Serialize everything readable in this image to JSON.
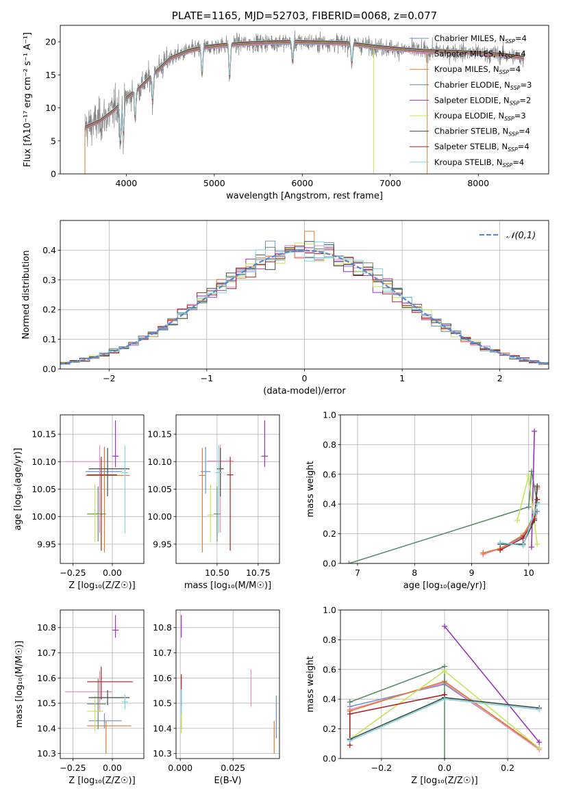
{
  "chart_data": [
    {
      "id": "spectrum",
      "type": "line",
      "title": "PLATE=1165, MJD=52703, FIBERID=0068, z=0.077",
      "xlabel": "wavelength [Angstrom, rest frame]",
      "ylabel": "Flux [f$_\\lambda$10$^{-17}$ erg cm$^{-2}$ s$^{-1}$ A$^{-1}$]",
      "ylabel_text": "Flux [fλ10⁻¹⁷ erg cm⁻² s⁻¹ A⁻¹]",
      "xlim": [
        3250,
        8800
      ],
      "ylim": [
        0,
        22.5
      ],
      "xticks": [
        4000,
        5000,
        6000,
        7000,
        8000
      ],
      "yticks": [
        0,
        5,
        10,
        15,
        20
      ],
      "grid": false,
      "legend_position": "right",
      "data_color": "#808080",
      "continuum_x": [
        3530,
        3700,
        3850,
        4000,
        4150,
        4300,
        4500,
        4700,
        4900,
        5100,
        5300,
        5600,
        5900,
        6200,
        6500,
        6800,
        7100,
        7400,
        7700,
        8000,
        8300,
        8500
      ],
      "continuum_y": [
        7.0,
        8.0,
        9.5,
        11.5,
        13.0,
        15.0,
        17.5,
        18.6,
        19.2,
        19.5,
        19.7,
        19.9,
        20.0,
        19.9,
        19.8,
        19.3,
        18.9,
        18.6,
        18.5,
        18.3,
        18.0,
        17.6
      ],
      "series": [
        {
          "name": "Chabrier MILES",
          "nssp": "4",
          "color": "#6b8fc9"
        },
        {
          "name": "Salpeter MILES",
          "nssp": "4",
          "color": "#e88dbf"
        },
        {
          "name": "Kroupa MILES",
          "nssp": "4",
          "color": "#e07b2d"
        },
        {
          "name": "Chabrier ELODIE",
          "nssp": "3",
          "color": "#5c8a6a"
        },
        {
          "name": "Salpeter ELODIE",
          "nssp": "2",
          "color": "#9932b5"
        },
        {
          "name": "Kroupa ELODIE",
          "nssp": "3",
          "color": "#c8e35a"
        },
        {
          "name": "Chabrier STELIB",
          "nssp": "4",
          "color": "#3f4a3f"
        },
        {
          "name": "Salpeter STELIB",
          "nssp": "4",
          "color": "#b01f1f"
        },
        {
          "name": "Kroupa STELIB",
          "nssp": "4",
          "color": "#7fd3e0"
        }
      ]
    },
    {
      "id": "residuals",
      "type": "histogram",
      "xlabel": "(data-model)/error",
      "ylabel": "Normed distribution",
      "xlim": [
        -2.5,
        2.5
      ],
      "ylim": [
        0,
        0.5
      ],
      "xticks": [
        -2,
        -1,
        0,
        1,
        2
      ],
      "yticks": [
        0.0,
        0.1,
        0.2,
        0.3,
        0.4
      ],
      "grid": true,
      "legend_position": "top-right",
      "reference_label": "𝒩(0,1)",
      "reference_color": "#5b86cf",
      "bin_width": 0.1,
      "bin_start": -2.5
    },
    {
      "id": "age-vs-Z",
      "type": "scatter",
      "xlabel": "Z [log₁₀(Z/Z☉)]",
      "ylabel": "age  [log₁₀(age/yr)]",
      "xlim": [
        -0.33,
        0.2
      ],
      "ylim": [
        9.915,
        10.185
      ],
      "xticks": [
        -0.25,
        0.0
      ],
      "yticks": [
        9.95,
        10.0,
        10.05,
        10.1,
        10.15
      ],
      "grid": true,
      "points": [
        {
          "series": "Chabrier MILES",
          "x": -0.05,
          "y": 10.082,
          "xerr": [
            0.12,
            0.11
          ],
          "yerr": [
            0.04,
            0.045
          ]
        },
        {
          "series": "Salpeter MILES",
          "x": -0.08,
          "y": 10.1,
          "xerr": [
            0.22,
            0.08
          ],
          "yerr": [
            0.13,
            0.03
          ]
        },
        {
          "series": "Kroupa MILES",
          "x": -0.05,
          "y": 10.075,
          "xerr": [
            0.12,
            0.16
          ],
          "yerr": [
            0.14,
            0.05
          ]
        },
        {
          "series": "Chabrier ELODIE",
          "x": -0.09,
          "y": 10.005,
          "xerr": [
            0.07,
            0.05
          ],
          "yerr": [
            0.05,
            0.05
          ]
        },
        {
          "series": "Salpeter ELODIE",
          "x": 0.02,
          "y": 10.11,
          "xerr": [
            0.02,
            0.02
          ],
          "yerr": [
            0.02,
            0.065
          ]
        },
        {
          "series": "Kroupa ELODIE",
          "x": -0.11,
          "y": 10.004,
          "xerr": [
            0.05,
            0.05
          ],
          "yerr": [
            0.05,
            0.055
          ]
        },
        {
          "series": "Chabrier STELIB",
          "x": -0.03,
          "y": 10.087,
          "xerr": [
            0.12,
            0.14
          ],
          "yerr": [
            0.05,
            0.038
          ]
        },
        {
          "series": "Salpeter STELIB",
          "x": -0.07,
          "y": 10.076,
          "xerr": [
            0.09,
            0.1
          ],
          "yerr": [
            0.138,
            0.033
          ]
        },
        {
          "series": "Kroupa STELIB",
          "x": 0.08,
          "y": 10.08,
          "xerr": [
            0.02,
            0.02
          ],
          "yerr": [
            0.11,
            0.05
          ]
        }
      ]
    },
    {
      "id": "age-vs-mass",
      "type": "scatter",
      "xlabel": "mass [log₁₀(M/M☉)]",
      "ylabel": "",
      "xlim": [
        10.25,
        10.88
      ],
      "ylim": [
        9.915,
        10.185
      ],
      "xticks": [
        10.5,
        10.75
      ],
      "xtick_labels": [
        "10.50",
        "10.75"
      ],
      "yticks": [
        9.95,
        10.0,
        10.05,
        10.1,
        10.15
      ],
      "grid": true,
      "points": [
        {
          "series": "Chabrier MILES",
          "x": 10.43,
          "y": 10.082,
          "xerr": [
            0.03,
            0.03
          ],
          "yerr": [
            0.04,
            0.045
          ]
        },
        {
          "series": "Salpeter MILES",
          "x": 10.52,
          "y": 10.101,
          "xerr": [
            0.08,
            0.08
          ],
          "yerr": [
            0.13,
            0.03
          ]
        },
        {
          "series": "Kroupa MILES",
          "x": 10.41,
          "y": 10.075,
          "xerr": [
            0.02,
            0.02
          ],
          "yerr": [
            0.14,
            0.05
          ]
        },
        {
          "series": "Chabrier ELODIE",
          "x": 10.5,
          "y": 10.005,
          "xerr": [
            0.02,
            0.02
          ],
          "yerr": [
            0.05,
            0.05
          ]
        },
        {
          "series": "Salpeter ELODIE",
          "x": 10.79,
          "y": 10.11,
          "xerr": [
            0.02,
            0.02
          ],
          "yerr": [
            0.02,
            0.065
          ]
        },
        {
          "series": "Kroupa ELODIE",
          "x": 10.46,
          "y": 10.003,
          "xerr": [
            0.02,
            0.02
          ],
          "yerr": [
            0.05,
            0.055
          ]
        },
        {
          "series": "Chabrier STELIB",
          "x": 10.52,
          "y": 10.087,
          "xerr": [
            0.02,
            0.02
          ],
          "yerr": [
            0.05,
            0.038
          ]
        },
        {
          "series": "Salpeter STELIB",
          "x": 10.58,
          "y": 10.076,
          "xerr": [
            0.02,
            0.02
          ],
          "yerr": [
            0.138,
            0.033
          ]
        },
        {
          "series": "Kroupa STELIB",
          "x": 10.51,
          "y": 10.08,
          "xerr": [
            0.02,
            0.02
          ],
          "yerr": [
            0.11,
            0.05
          ]
        }
      ]
    },
    {
      "id": "weight-vs-age",
      "type": "line",
      "xlabel": "age  [log₁₀(age/yr)]",
      "ylabel": "mass weight",
      "xlim": [
        6.7,
        10.35
      ],
      "ylim": [
        0,
        1.0
      ],
      "xticks": [
        7,
        8,
        9,
        10
      ],
      "yticks": [
        0.0,
        0.2,
        0.4,
        0.6,
        0.8,
        1.0
      ],
      "grid": true,
      "series": [
        {
          "name": "Chabrier MILES",
          "x": [
            9.2,
            9.5,
            9.9,
            10.1,
            10.15
          ],
          "y": [
            0.07,
            0.1,
            0.18,
            0.33,
            0.35
          ]
        },
        {
          "name": "Salpeter MILES",
          "x": [
            9.2,
            9.5,
            9.9,
            10.1,
            10.15
          ],
          "y": [
            0.06,
            0.1,
            0.19,
            0.31,
            0.5
          ]
        },
        {
          "name": "Kroupa MILES",
          "x": [
            9.2,
            9.5,
            9.9,
            10.1,
            10.15
          ],
          "y": [
            0.07,
            0.1,
            0.19,
            0.32,
            0.51
          ]
        },
        {
          "name": "Chabrier ELODIE",
          "x": [
            6.85,
            10.0,
            10.05,
            10.15
          ],
          "y": [
            0.0,
            0.38,
            0.62,
            0.41
          ]
        },
        {
          "name": "Salpeter ELODIE",
          "x": [
            10.05,
            10.1
          ],
          "y": [
            0.11,
            0.89
          ]
        },
        {
          "name": "Kroupa ELODIE",
          "x": [
            9.8,
            10.0,
            10.15
          ],
          "y": [
            0.29,
            0.59,
            0.13
          ]
        },
        {
          "name": "Chabrier STELIB",
          "x": [
            9.5,
            9.9,
            10.1,
            10.15
          ],
          "y": [
            0.13,
            0.13,
            0.29,
            0.52
          ]
        },
        {
          "name": "Salpeter STELIB",
          "x": [
            9.5,
            9.9,
            10.1,
            10.15
          ],
          "y": [
            0.09,
            0.17,
            0.3,
            0.43
          ]
        },
        {
          "name": "Kroupa STELIB",
          "x": [
            9.5,
            9.9,
            10.1,
            10.15
          ],
          "y": [
            0.14,
            0.12,
            0.34,
            0.4
          ]
        }
      ]
    },
    {
      "id": "mass-vs-Z",
      "type": "scatter",
      "xlabel": "Z [log₁₀(Z/Z☉)]",
      "ylabel": "mass [log₁₀(M/M☉)]",
      "xlim": [
        -0.33,
        0.2
      ],
      "ylim": [
        10.28,
        10.87
      ],
      "xticks": [
        -0.25,
        0.0
      ],
      "yticks": [
        10.3,
        10.4,
        10.5,
        10.6,
        10.7,
        10.8
      ],
      "grid": true,
      "points": [
        {
          "series": "Chabrier MILES",
          "x": -0.05,
          "y": 10.43,
          "xerr": [
            0.1,
            0.11
          ],
          "yerr": [
            0.03,
            0.03
          ]
        },
        {
          "series": "Salpeter MILES",
          "x": -0.08,
          "y": 10.545,
          "xerr": [
            0.22,
            0.08
          ],
          "yerr": [
            0.08,
            0.085
          ]
        },
        {
          "series": "Kroupa MILES",
          "x": -0.04,
          "y": 10.41,
          "xerr": [
            0.12,
            0.16
          ],
          "yerr": [
            0.11,
            0.02
          ]
        },
        {
          "series": "Chabrier ELODIE",
          "x": -0.09,
          "y": 10.497,
          "xerr": [
            0.07,
            0.05
          ],
          "yerr": [
            0.1,
            0.1
          ]
        },
        {
          "series": "Salpeter ELODIE",
          "x": 0.02,
          "y": 10.79,
          "xerr": [
            0.02,
            0.02
          ],
          "yerr": [
            0.03,
            0.06
          ]
        },
        {
          "series": "Kroupa ELODIE",
          "x": -0.11,
          "y": 10.468,
          "xerr": [
            0.05,
            0.05
          ],
          "yerr": [
            0.08,
            0.06
          ]
        },
        {
          "series": "Chabrier STELIB",
          "x": -0.03,
          "y": 10.522,
          "xerr": [
            0.12,
            0.14
          ],
          "yerr": [
            0.03,
            0.03
          ]
        },
        {
          "series": "Salpeter STELIB",
          "x": -0.07,
          "y": 10.585,
          "xerr": [
            0.09,
            0.2
          ],
          "yerr": [
            0.07,
            0.06
          ]
        },
        {
          "series": "Kroupa STELIB",
          "x": 0.08,
          "y": 10.505,
          "xerr": [
            0.02,
            0.02
          ],
          "yerr": [
            0.03,
            0.03
          ]
        }
      ]
    },
    {
      "id": "mass-vs-EBV",
      "type": "scatter",
      "xlabel": "E(B-V)",
      "ylabel": "",
      "xlim": [
        -0.002,
        0.047
      ],
      "ylim": [
        10.28,
        10.87
      ],
      "xticks": [
        0.0,
        0.025
      ],
      "xtick_labels": [
        "0.000",
        "0.025"
      ],
      "yticks": [
        10.3,
        10.4,
        10.5,
        10.6,
        10.7,
        10.8
      ],
      "grid": true,
      "points": [
        {
          "series": "Chabrier MILES",
          "x": 0.0455,
          "y": 10.43,
          "yerr": [
            0.07,
            0.1
          ]
        },
        {
          "series": "Salpeter MILES",
          "x": 0.0335,
          "y": 10.545,
          "yerr": [
            0.06,
            0.09
          ]
        },
        {
          "series": "Kroupa MILES",
          "x": 0.0445,
          "y": 10.41,
          "yerr": [
            0.11,
            0.02
          ]
        },
        {
          "series": "Chabrier ELODIE",
          "x": 0.0005,
          "y": 10.497,
          "yerr": [
            0.1,
            0.05
          ]
        },
        {
          "series": "Salpeter ELODIE",
          "x": 0.0005,
          "y": 10.79,
          "yerr": [
            0.03,
            0.06
          ]
        },
        {
          "series": "Kroupa ELODIE",
          "x": 0.0005,
          "y": 10.43,
          "yerr": [
            0.05,
            0.05
          ]
        },
        {
          "series": "Chabrier STELIB",
          "x": 0.0005,
          "y": 10.522,
          "yerr": [
            0.03,
            0.03
          ]
        },
        {
          "series": "Salpeter STELIB",
          "x": 0.0005,
          "y": 10.585,
          "yerr": [
            0.04,
            0.03
          ]
        },
        {
          "series": "Kroupa STELIB",
          "x": 0.0005,
          "y": 10.505,
          "yerr": [
            0.05,
            0.05
          ]
        }
      ]
    },
    {
      "id": "weight-vs-Z",
      "type": "line",
      "xlabel": "Z [log₁₀(Z/Z☉)]",
      "ylabel": "mass weight",
      "xlim": [
        -0.33,
        0.33
      ],
      "ylim": [
        0,
        1.0
      ],
      "xticks": [
        -0.2,
        0.0,
        0.2
      ],
      "xtick_labels": [
        "−0.2",
        "0.0",
        "0.2"
      ],
      "yticks": [
        0.0,
        0.2,
        0.4,
        0.6,
        0.8,
        1.0
      ],
      "grid": true,
      "series": [
        {
          "name": "Chabrier MILES",
          "x": [
            -0.3,
            0.0,
            0.3
          ],
          "y": [
            0.35,
            0.5,
            0.07
          ]
        },
        {
          "name": "Salpeter MILES",
          "x": [
            -0.3,
            0.0,
            0.3
          ],
          "y": [
            0.33,
            0.51,
            0.06
          ]
        },
        {
          "name": "Kroupa MILES",
          "x": [
            -0.3,
            0.0,
            0.3
          ],
          "y": [
            0.32,
            0.52,
            0.07
          ]
        },
        {
          "name": "Chabrier ELODIE",
          "x": [
            -0.3,
            0.0,
            0.0
          ],
          "y": [
            0.38,
            0.62,
            0.0
          ]
        },
        {
          "name": "Salpeter ELODIE",
          "x": [
            0.0,
            0.3
          ],
          "y": [
            0.89,
            0.11
          ]
        },
        {
          "name": "Kroupa ELODIE",
          "x": [
            -0.3,
            0.0,
            0.3
          ],
          "y": [
            0.13,
            0.59,
            0.07
          ]
        },
        {
          "name": "Chabrier STELIB",
          "x": [
            -0.3,
            0.0,
            0.3
          ],
          "y": [
            0.13,
            0.41,
            0.34
          ]
        },
        {
          "name": "Salpeter STELIB",
          "x": [
            -0.3,
            -0.3,
            0.0
          ],
          "y": [
            0.09,
            0.3,
            0.43
          ]
        },
        {
          "name": "Kroupa STELIB",
          "x": [
            -0.3,
            0.0,
            0.3
          ],
          "y": [
            0.12,
            0.4,
            0.33
          ]
        }
      ]
    }
  ]
}
